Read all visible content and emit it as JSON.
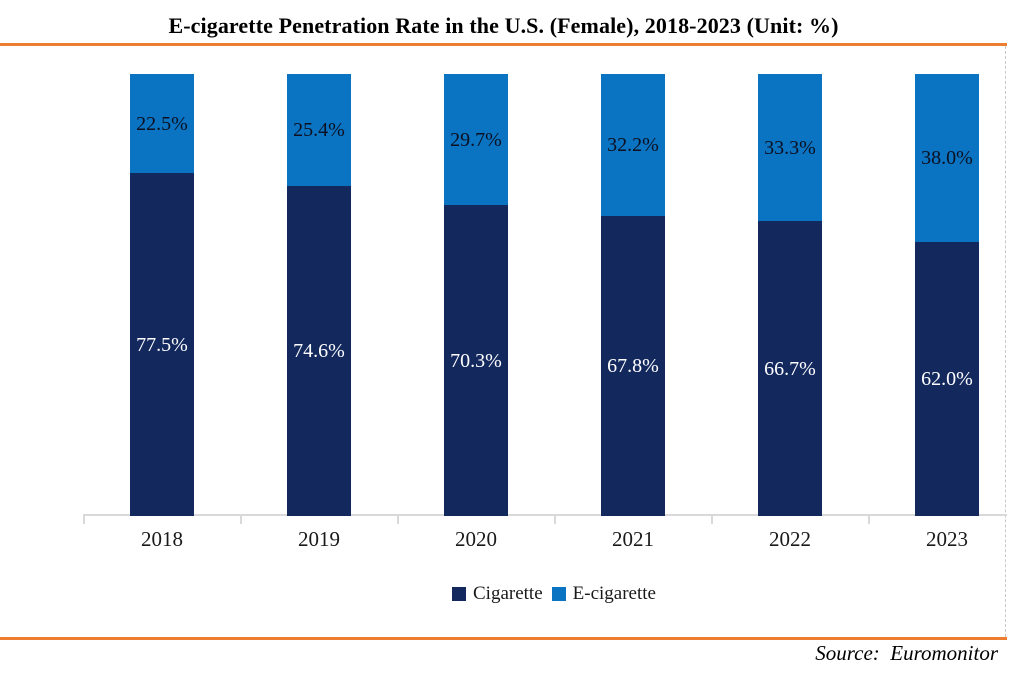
{
  "page": {
    "title": "E-cigarette Penetration Rate in the U.S. (Female), 2018-2023 (Unit: %)",
    "source_credit": "Source:  Euromonitor"
  },
  "colors": {
    "accent_rule": "#ED7D31",
    "axis": "#D9D9D9",
    "cigarette": "#13295E",
    "e_cigarette": "#0A73C2"
  },
  "legend": {
    "items": [
      {
        "label": "Cigarette",
        "color": "#13295E"
      },
      {
        "label": "E-cigarette",
        "color": "#0A73C2"
      }
    ]
  },
  "chart_data": {
    "type": "bar",
    "stacked": true,
    "percent_stacked": true,
    "title": "E-cigarette Penetration Rate in the U.S. (Female), 2018-2023 (Unit: %)",
    "unit": "%",
    "categories": [
      "2018",
      "2019",
      "2020",
      "2021",
      "2022",
      "2023"
    ],
    "series": [
      {
        "name": "Cigarette",
        "color": "#13295E",
        "label_color": "#FFFFFF",
        "values": [
          77.5,
          74.6,
          70.3,
          67.8,
          66.7,
          62.0
        ]
      },
      {
        "name": "E-cigarette",
        "color": "#0A73C2",
        "label_color": "#0C1020",
        "values": [
          22.5,
          25.4,
          29.7,
          32.2,
          33.3,
          38.0
        ]
      }
    ],
    "ylim": [
      0,
      100
    ],
    "grid": false,
    "y_axis_visible": false,
    "legend_position": "bottom",
    "value_label_format": "{value}%",
    "source": "Euromonitor"
  }
}
